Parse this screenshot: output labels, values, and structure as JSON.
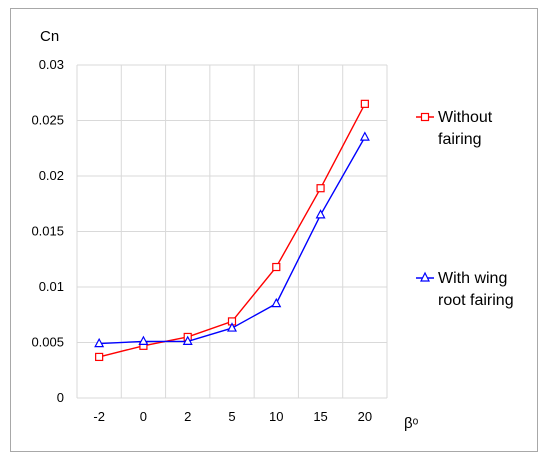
{
  "chart_data": {
    "type": "line",
    "title": "",
    "xlabel": "βᵒ",
    "ylabel": "Cn",
    "categories": [
      "-2",
      "0",
      "2",
      "5",
      "10",
      "15",
      "20"
    ],
    "ylim": [
      0,
      0.03
    ],
    "yticks": [
      "0",
      "0.005",
      "0.01",
      "0.015",
      "0.02",
      "0.025",
      "0.03"
    ],
    "grid": true,
    "legend_position": "right",
    "series": [
      {
        "name_lines": [
          "Without",
          "fairing"
        ],
        "values": [
          0.0037,
          0.0047,
          0.0055,
          0.0069,
          0.0118,
          0.0189,
          0.0265
        ],
        "color": "#ff0000",
        "marker": "square"
      },
      {
        "name_lines": [
          "With wing",
          "root fairing"
        ],
        "values": [
          0.0049,
          0.0051,
          0.0051,
          0.0063,
          0.0085,
          0.0165,
          0.0235
        ],
        "color": "#0000ff",
        "marker": "triangle"
      }
    ]
  }
}
